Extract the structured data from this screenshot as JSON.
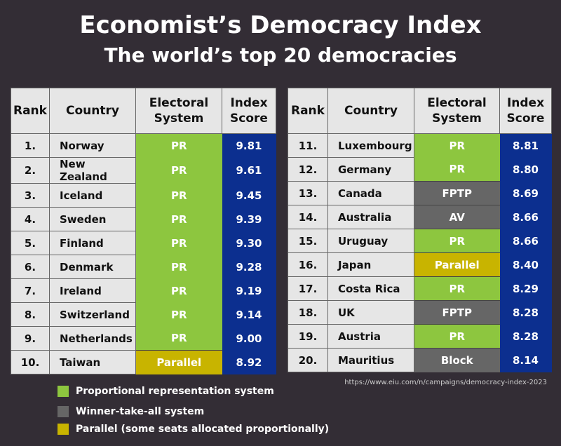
{
  "title": "Economist’s Democracy Index",
  "subtitle": "The world’s top 20 democracies",
  "colors": {
    "background": "#332d35",
    "PR": "#8dc63f",
    "winner_take_all": "#666666",
    "parallel": "#c8b400",
    "score": "#0c2f8f",
    "header": "#e6e6e6"
  },
  "chart_data": {
    "type": "table",
    "columns": [
      "Rank",
      "Country",
      "Electoral System",
      "Index Score"
    ],
    "rows": [
      [
        "1.",
        "Norway",
        "PR",
        "9.81"
      ],
      [
        "2.",
        "New Zealand",
        "PR",
        "9.61"
      ],
      [
        "3.",
        "Iceland",
        "PR",
        "9.45"
      ],
      [
        "4.",
        "Sweden",
        "PR",
        "9.39"
      ],
      [
        "5.",
        "Finland",
        "PR",
        "9.30"
      ],
      [
        "6.",
        "Denmark",
        "PR",
        "9.28"
      ],
      [
        "7.",
        "Ireland",
        "PR",
        "9.19"
      ],
      [
        "8.",
        "Switzerland",
        "PR",
        "9.14"
      ],
      [
        "9.",
        "Netherlands",
        "PR",
        "9.00"
      ],
      [
        "10.",
        "Taiwan",
        "Parallel",
        "8.92"
      ],
      [
        "11.",
        "Luxembourg",
        "PR",
        "8.81"
      ],
      [
        "12.",
        "Germany",
        "PR",
        "8.80"
      ],
      [
        "13.",
        "Canada",
        "FPTP",
        "8.69"
      ],
      [
        "14.",
        "Australia",
        "AV",
        "8.66"
      ],
      [
        "15.",
        "Uruguay",
        "PR",
        "8.66"
      ],
      [
        "16.",
        "Japan",
        "Parallel",
        "8.40"
      ],
      [
        "17.",
        "Costa Rica",
        "PR",
        "8.29"
      ],
      [
        "18.",
        "UK",
        "FPTP",
        "8.28"
      ],
      [
        "19.",
        "Austria",
        "PR",
        "8.28"
      ],
      [
        "20.",
        "Mauritius",
        "Block",
        "8.14"
      ]
    ],
    "system_category": {
      "PR": "PR",
      "Parallel": "parallel",
      "FPTP": "winner_take_all",
      "AV": "winner_take_all",
      "Block": "winner_take_all"
    }
  },
  "headers": {
    "rank": "Rank",
    "country": "Country",
    "system_1": "Electoral",
    "system_2": "System",
    "score_1": "Index",
    "score_2": "Score"
  },
  "legend": [
    {
      "label": "Proportional representation system",
      "color": "#8dc63f"
    },
    {
      "label": "Winner-take-all system",
      "color": "#666666"
    },
    {
      "label": "Parallel (some seats allocated proportionally)",
      "color": "#c8b400"
    }
  ],
  "source": "https://www.eiu.com/n/campaigns/democracy-index-2023"
}
